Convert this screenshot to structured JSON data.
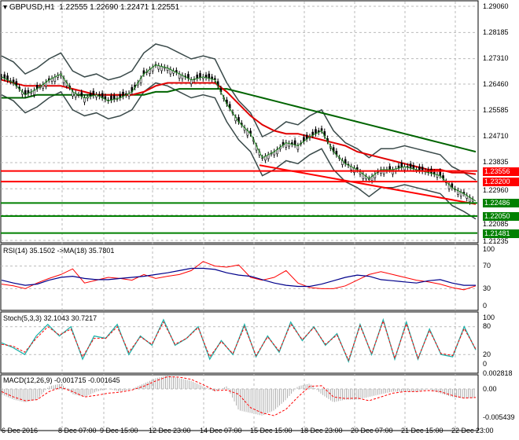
{
  "header": {
    "symbol": "GBPUSD,H1",
    "open": "1.22555",
    "high": "1.22690",
    "low": "1.22471",
    "close": "1.22551"
  },
  "chart_data": [
    {
      "type": "candlestick",
      "title": "GBPUSD,H1",
      "y_ticks": [
        "1.29060",
        "1.28185",
        "1.27310",
        "1.26460",
        "1.25585",
        "1.24710",
        "1.23835",
        "1.22960",
        "1.22085",
        "1.21235"
      ],
      "ylim": [
        1.21235,
        1.2906
      ],
      "close_approx": [
        1.267,
        1.265,
        1.261,
        1.263,
        1.266,
        1.268,
        1.262,
        1.26,
        1.261,
        1.259,
        1.26,
        1.262,
        1.268,
        1.271,
        1.27,
        1.268,
        1.266,
        1.267,
        1.266,
        1.258,
        1.252,
        1.248,
        1.24,
        1.242,
        1.245,
        1.244,
        1.247,
        1.249,
        1.242,
        1.238,
        1.236,
        1.233,
        1.236,
        1.236,
        1.237,
        1.236,
        1.235,
        1.234,
        1.23,
        1.228,
        1.2255
      ],
      "ma_red": [
        1.266,
        1.265,
        1.264,
        1.264,
        1.264,
        1.264,
        1.263,
        1.262,
        1.261,
        1.261,
        1.261,
        1.261,
        1.262,
        1.264,
        1.265,
        1.265,
        1.265,
        1.265,
        1.265,
        1.262,
        1.258,
        1.254,
        1.251,
        1.249,
        1.248,
        1.248,
        1.247,
        1.246,
        1.245,
        1.244,
        1.242,
        1.241,
        1.24,
        1.239,
        1.238,
        1.237,
        1.236,
        1.236,
        1.235,
        1.235,
        1.2345
      ],
      "ma_green": [
        1.26,
        1.26,
        1.26,
        1.261,
        1.261,
        1.261,
        1.261,
        1.261,
        1.261,
        1.261,
        1.261,
        1.261,
        1.261,
        1.262,
        1.262,
        1.263,
        1.263,
        1.263,
        1.263,
        1.263,
        1.262,
        1.261,
        1.26,
        1.259,
        1.258,
        1.257,
        1.256,
        1.255,
        1.254,
        1.253,
        1.252,
        1.251,
        1.25,
        1.249,
        1.248,
        1.247,
        1.246,
        1.245,
        1.244,
        1.243,
        1.242
      ],
      "levels": [
        {
          "price": "1.23556",
          "color": "#ff0000"
        },
        {
          "price": "1.23200",
          "color": "#ff0000"
        },
        {
          "price": "1.22486",
          "color": "#008000"
        },
        {
          "price": "1.22050",
          "color": "#008000"
        },
        {
          "price": "1.21481",
          "color": "#008000"
        }
      ],
      "trendline": [
        1.2375,
        1.2245
      ]
    },
    {
      "type": "line",
      "title": "RSI(14) 35.1502  ->MA(18) 35.7801",
      "ylim": [
        0,
        100
      ],
      "y_ticks": [
        "100",
        "70",
        "30",
        "0"
      ],
      "rsi": [
        38,
        35,
        30,
        40,
        48,
        55,
        65,
        40,
        45,
        50,
        48,
        45,
        55,
        48,
        52,
        55,
        62,
        78,
        70,
        68,
        72,
        50,
        45,
        50,
        62,
        40,
        32,
        30,
        30,
        35,
        45,
        55,
        60,
        55,
        50,
        45,
        42,
        38,
        32,
        28,
        35
      ],
      "ma": [
        45,
        40,
        36,
        38,
        45,
        50,
        52,
        48,
        46,
        46,
        48,
        50,
        52,
        55,
        58,
        62,
        66,
        66,
        64,
        58,
        54,
        52,
        46,
        40,
        36,
        34,
        34,
        38,
        44,
        50,
        54,
        52,
        46,
        44,
        42,
        40,
        44,
        46,
        40,
        36,
        36
      ]
    },
    {
      "type": "line",
      "title": "Stoch(5,3,3) 32.1043 30.7217",
      "ylim": [
        0,
        100
      ],
      "y_ticks": [
        "100",
        "80",
        "20",
        "0"
      ],
      "k": [
        45,
        35,
        20,
        60,
        85,
        60,
        80,
        10,
        60,
        55,
        85,
        20,
        60,
        40,
        95,
        40,
        55,
        80,
        10,
        50,
        20,
        85,
        15,
        60,
        25,
        90,
        50,
        80,
        40,
        65,
        5,
        85,
        20,
        95,
        10,
        90,
        10,
        75,
        20,
        15,
        80,
        30
      ],
      "d": [
        42,
        38,
        25,
        55,
        80,
        62,
        75,
        15,
        55,
        55,
        80,
        25,
        58,
        42,
        90,
        42,
        55,
        78,
        15,
        48,
        22,
        80,
        18,
        58,
        28,
        86,
        52,
        78,
        42,
        62,
        8,
        82,
        22,
        92,
        12,
        86,
        12,
        72,
        22,
        18,
        76,
        32
      ]
    },
    {
      "type": "bar+line",
      "title": "MACD(12,26,9) -0.001715 -0.001645",
      "ylim": [
        -0.005439,
        0.002818
      ],
      "y_ticks": [
        "0.002818",
        "0.00",
        "-0.005439"
      ],
      "hist": [
        -0.001,
        -0.002,
        -0.0025,
        -0.002,
        0.0005,
        0.001,
        -0.001,
        -0.0015,
        -0.0005,
        0,
        -0.0005,
        0,
        0.001,
        0.002,
        0.0025,
        0.002,
        0.0015,
        0.0005,
        -0.0005,
        0.0005,
        -0.004,
        -0.0045,
        -0.005,
        -0.004,
        -0.002,
        0.0005,
        0.001,
        -0.001,
        -0.0025,
        -0.002,
        -0.002,
        -0.0015,
        -0.001,
        -0.0005,
        -0.0005,
        -0.0005,
        0,
        -0.0008,
        -0.0015,
        -0.0018,
        -0.0017
      ],
      "signal": [
        -0.0005,
        -0.0015,
        -0.0022,
        -0.002,
        -0.0005,
        0.0003,
        -0.0005,
        -0.0015,
        -0.0012,
        -0.0008,
        -0.0006,
        -0.0002,
        0.0005,
        0.0015,
        0.0023,
        0.0022,
        0.0018,
        0.0008,
        -0.0003,
        -0.0002,
        -0.001,
        -0.0035,
        -0.0045,
        -0.005,
        -0.0038,
        -0.0015,
        0.0005,
        0.0006,
        -0.0015,
        -0.0018,
        -0.0017,
        -0.0022,
        -0.0015,
        -0.0008,
        -0.0005,
        -0.0005,
        -0.0003,
        -0.0005,
        -0.0012,
        -0.0017,
        -0.0016
      ]
    },
    {
      "type": "axis",
      "x_ticks": [
        "6 Dec 2016",
        "8 Dec 07:00",
        "9 Dec 15:00",
        "12 Dec 23:00",
        "14 Dec 07:00",
        "15 Dec 15:00",
        "18 Dec 23:00",
        "20 Dec 07:00",
        "21 Dec 15:00",
        "22 Dec 23:00"
      ]
    }
  ]
}
